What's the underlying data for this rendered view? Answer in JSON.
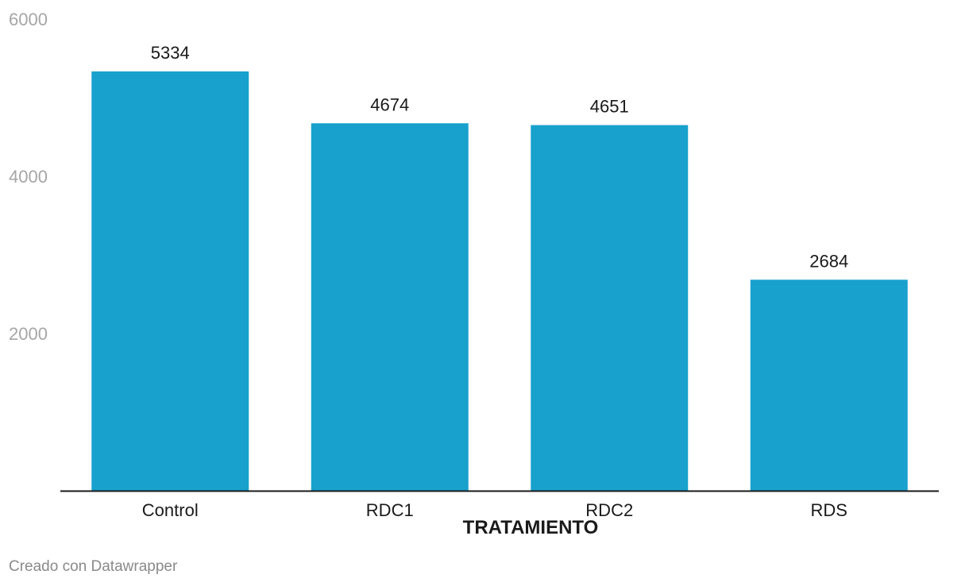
{
  "chart_data": {
    "type": "bar",
    "categories": [
      "Control",
      "RDC1",
      "RDC2",
      "RDS"
    ],
    "values": [
      5334,
      4674,
      4651,
      2684
    ],
    "xlabel": "TRATAMIENTO",
    "ylabel": "",
    "ylim": [
      0,
      6000
    ],
    "yticks": [
      2000,
      4000,
      6000
    ],
    "bar_color": "#18a1cd",
    "grid": false,
    "data_labels": true
  },
  "footer": {
    "credit": "Creado con Datawrapper"
  }
}
